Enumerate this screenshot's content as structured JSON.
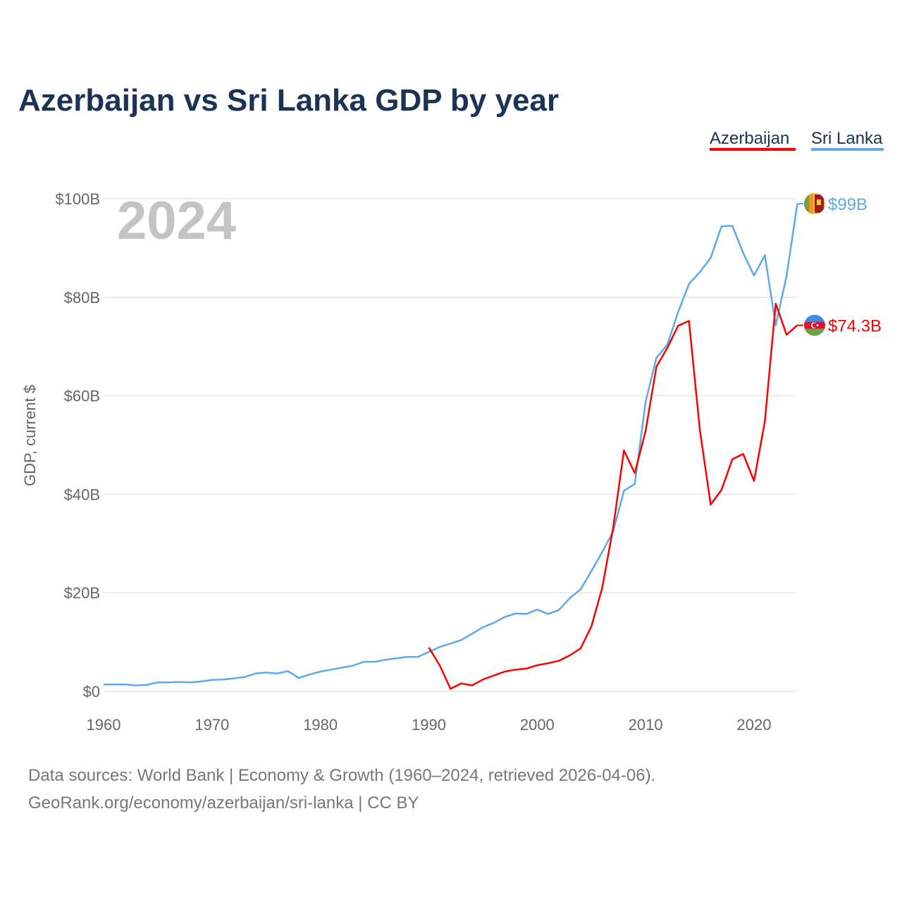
{
  "chart_data": {
    "type": "line",
    "title": "Azerbaijan vs Sri Lanka GDP by year",
    "ylabel": "GDP, current $",
    "xlabel": "",
    "xlim": [
      1960,
      2024
    ],
    "ylim": [
      0,
      100
    ],
    "x_ticks": [
      1960,
      1970,
      1980,
      1990,
      2000,
      2010,
      2020
    ],
    "x_tick_labels": [
      "1960",
      "1970",
      "1980",
      "1990",
      "2000",
      "2010",
      "2020"
    ],
    "y_ticks": [
      0,
      20,
      40,
      60,
      80,
      100
    ],
    "y_tick_labels": [
      "$0",
      "$20B",
      "$40B",
      "$60B",
      "$80B",
      "$100B"
    ],
    "grid": true,
    "legend_position": "top-right",
    "year_watermark": "2024",
    "series": [
      {
        "name": "Azerbaijan",
        "color": "#ff0000",
        "end_label": "$74.3B",
        "x": [
          1990,
          1991,
          1992,
          1993,
          1994,
          1995,
          1996,
          1997,
          1998,
          1999,
          2000,
          2001,
          2002,
          2003,
          2004,
          2005,
          2006,
          2007,
          2008,
          2009,
          2010,
          2011,
          2012,
          2013,
          2014,
          2015,
          2016,
          2017,
          2018,
          2019,
          2020,
          2021,
          2022,
          2023,
          2024
        ],
        "values": [
          8.9,
          5.3,
          0.5,
          1.6,
          1.2,
          2.4,
          3.2,
          4.0,
          4.4,
          4.6,
          5.3,
          5.7,
          6.2,
          7.3,
          8.7,
          13.2,
          21.0,
          33.1,
          48.9,
          44.3,
          52.9,
          65.9,
          69.7,
          74.2,
          75.2,
          53.1,
          37.9,
          40.9,
          47.1,
          48.2,
          42.7,
          54.8,
          78.7,
          72.4,
          74.3
        ]
      },
      {
        "name": "Sri Lanka",
        "color": "#5ea9ee",
        "end_label": "$99B",
        "x": [
          1960,
          1961,
          1962,
          1963,
          1964,
          1965,
          1966,
          1967,
          1968,
          1969,
          1970,
          1971,
          1972,
          1973,
          1974,
          1975,
          1976,
          1977,
          1978,
          1979,
          1980,
          1981,
          1982,
          1983,
          1984,
          1985,
          1986,
          1987,
          1988,
          1989,
          1990,
          1991,
          1992,
          1993,
          1994,
          1995,
          1996,
          1997,
          1998,
          1999,
          2000,
          2001,
          2002,
          2003,
          2004,
          2005,
          2006,
          2007,
          2008,
          2009,
          2010,
          2011,
          2012,
          2013,
          2014,
          2015,
          2016,
          2017,
          2018,
          2019,
          2020,
          2021,
          2022,
          2023,
          2024
        ],
        "values": [
          1.4,
          1.4,
          1.4,
          1.2,
          1.3,
          1.8,
          1.8,
          1.9,
          1.8,
          2.0,
          2.3,
          2.4,
          2.6,
          2.9,
          3.6,
          3.8,
          3.6,
          4.1,
          2.7,
          3.4,
          4.0,
          4.4,
          4.8,
          5.2,
          6.0,
          6.0,
          6.4,
          6.7,
          7.0,
          7.0,
          8.0,
          9.0,
          9.7,
          10.4,
          11.7,
          13.0,
          13.9,
          15.1,
          15.8,
          15.7,
          16.6,
          15.7,
          16.5,
          18.9,
          20.7,
          24.4,
          28.3,
          32.4,
          40.7,
          42.1,
          58.8,
          67.7,
          70.3,
          77.0,
          82.7,
          85.1,
          88.0,
          94.4,
          94.5,
          89.0,
          84.4,
          88.5,
          74.3,
          84.3,
          99.0
        ]
      }
    ]
  },
  "footer": {
    "source_line": "Data sources: World Bank | Economy & Growth (1960–2024, retrieved 2026-04-06).",
    "credit_line": "GeoRank.org/economy/azerbaijan/sri-lanka | CC BY"
  }
}
